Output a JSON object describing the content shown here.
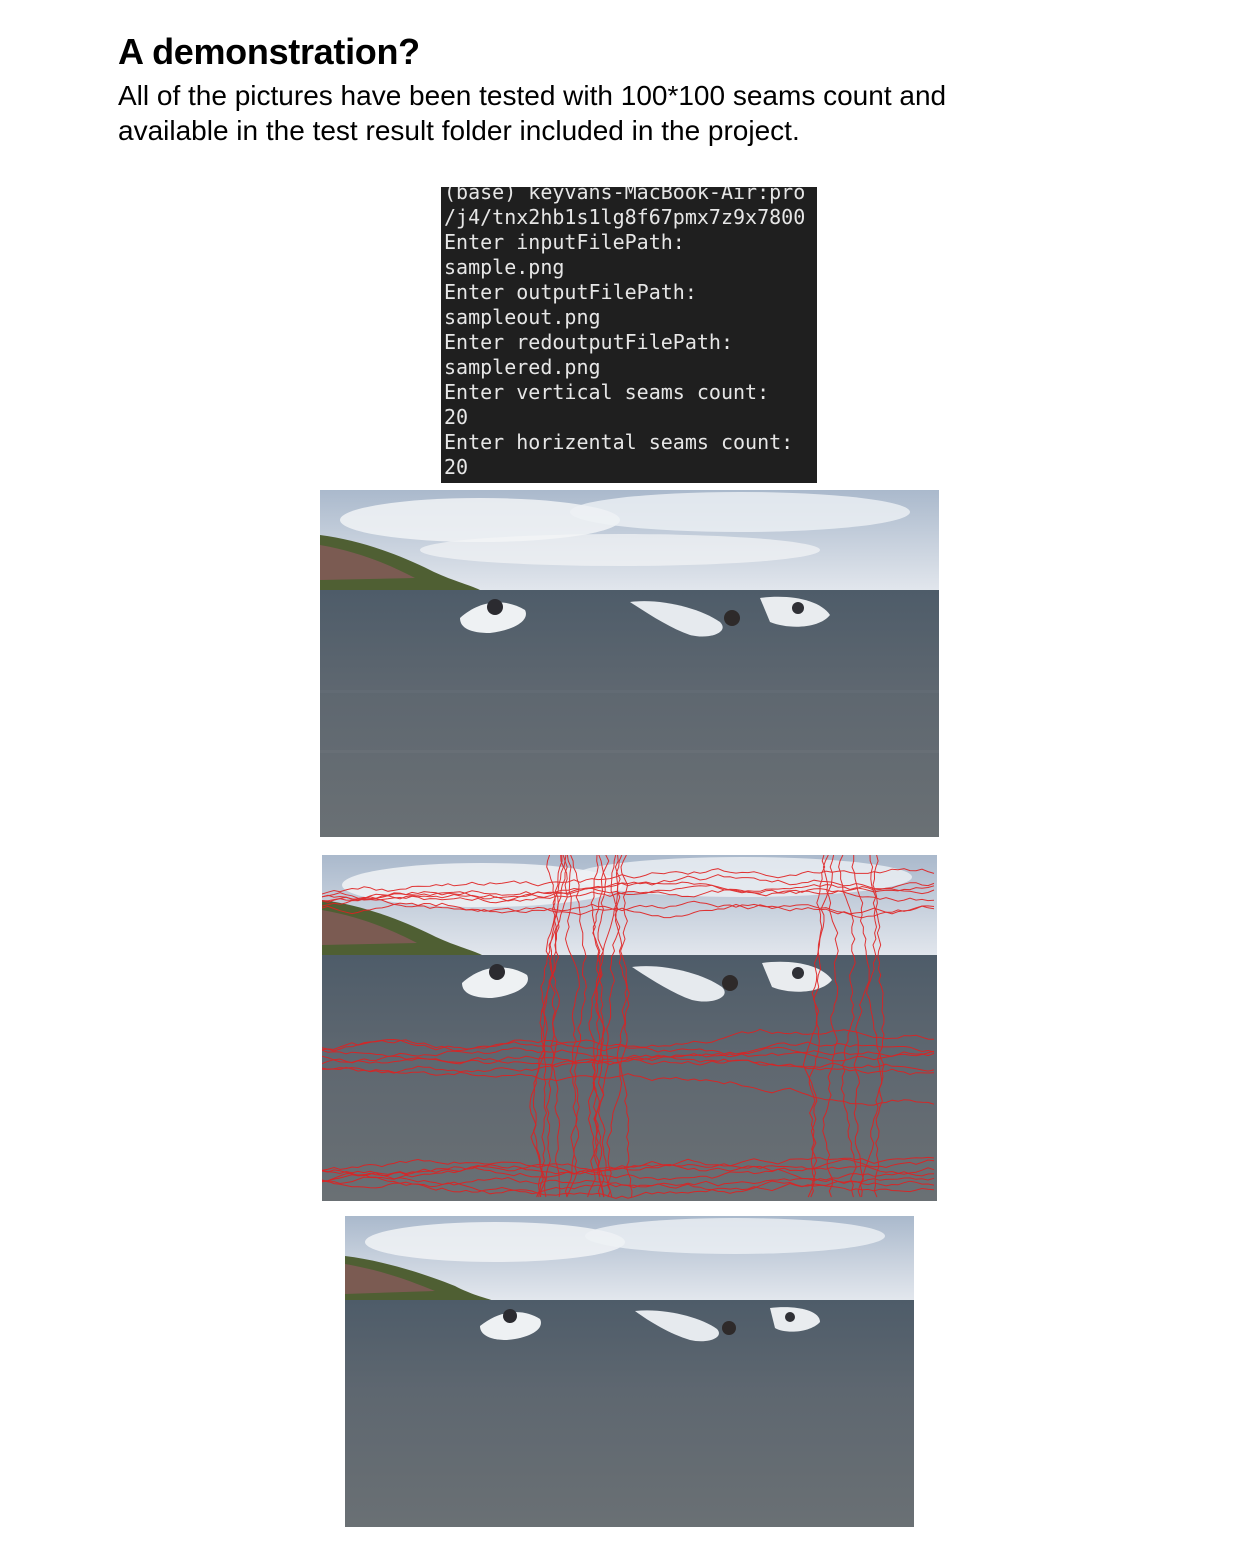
{
  "page": {
    "heading": "A demonstration?",
    "intro_line1": "All of the pictures have been tested with 100*100 seams count and",
    "intro_line2": "available in the test result folder included in the project."
  },
  "terminal": {
    "lines": [
      "(base) keyvans-MacBook-Air:pro",
      "/j4/tnx2hb1s1lg8f67pmx7z9x7800",
      "Enter inputFilePath:",
      "sample.png",
      "Enter outputFilePath:",
      "sampleout.png",
      "Enter redoutputFilePath:",
      "samplered.png",
      "Enter vertical seams count:",
      "20",
      "Enter horizental seams count:",
      "20"
    ]
  },
  "colors": {
    "terminal_bg": "#1f1f1f",
    "terminal_text": "#e6e6e6",
    "seam_red": "#e02020",
    "sky": "#c9d3df",
    "sea": "#59626c",
    "hill": "#6b7a3a"
  }
}
